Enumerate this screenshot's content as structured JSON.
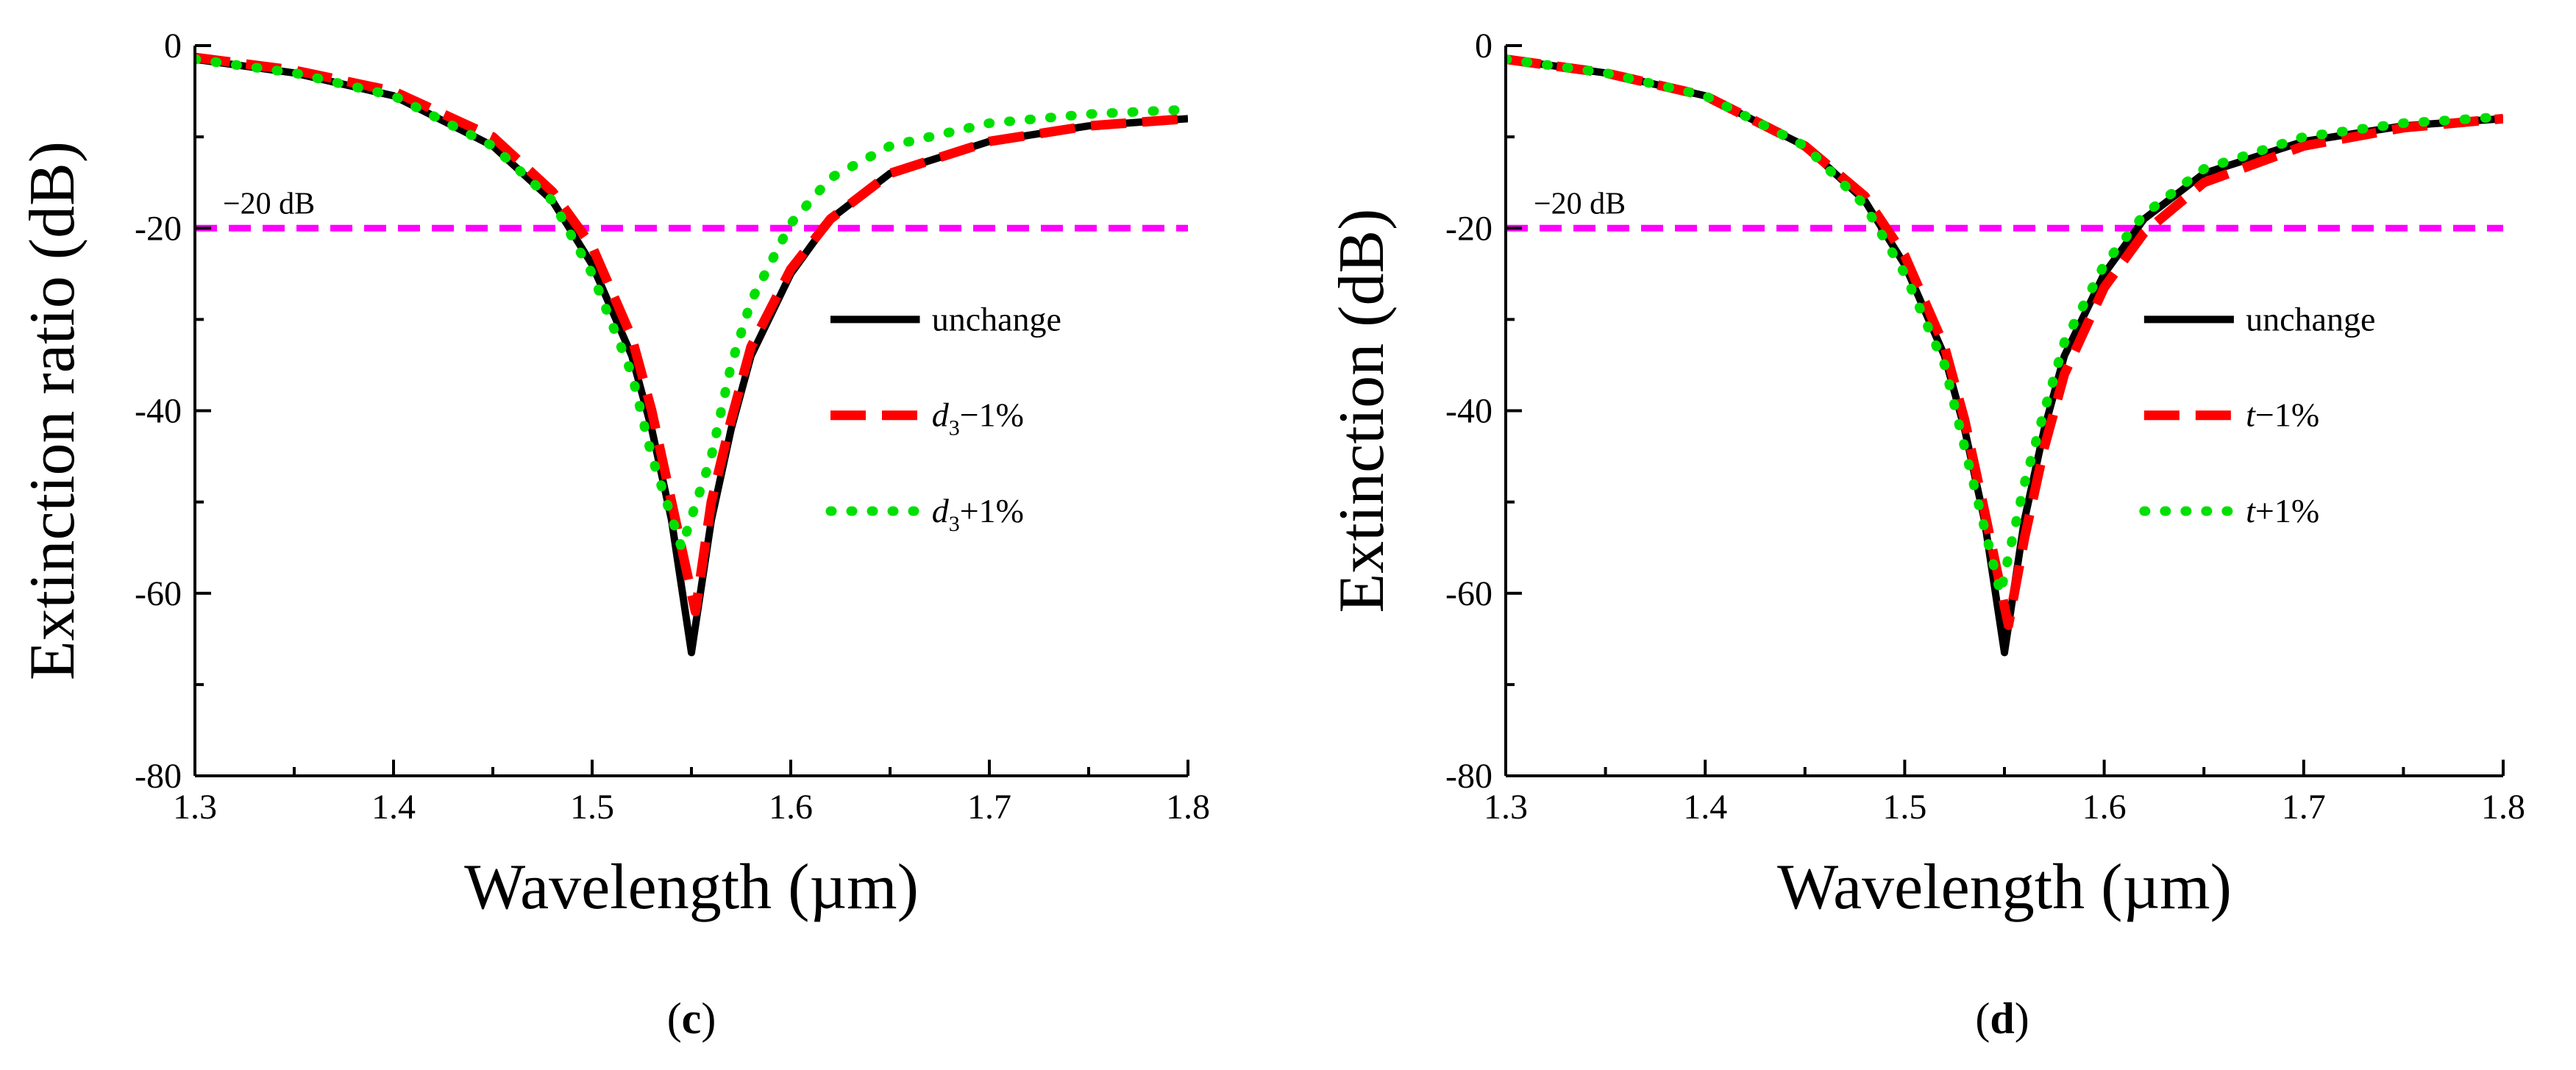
{
  "colors": {
    "unchange": "#000000",
    "minus": "#ff0000",
    "plus": "#00e000",
    "reference": "#ff00ff"
  },
  "chart_data": [
    {
      "type": "line",
      "panel_label": {
        "open": "(",
        "letter": "c",
        "close": ")"
      },
      "xlabel": "Wavelength (µm)",
      "ylabel": "Extinction ratio (dB)",
      "xlim": [
        1.3,
        1.8
      ],
      "ylim": [
        -80,
        0
      ],
      "xticks": [
        "1.3",
        "1.4",
        "1.5",
        "1.6",
        "1.7",
        "1.8"
      ],
      "yticks": [
        "0",
        "-20",
        "-40",
        "-60",
        "-80"
      ],
      "reference_line": {
        "y": -20,
        "label": "−20 dB"
      },
      "legend_position": "right",
      "series": [
        {
          "name": "unchange",
          "legend": {
            "var": "unchange",
            "sub": "",
            "suffix": ""
          },
          "style": "solid",
          "x": [
            1.3,
            1.35,
            1.4,
            1.45,
            1.48,
            1.5,
            1.52,
            1.53,
            1.54,
            1.55,
            1.56,
            1.57,
            1.58,
            1.6,
            1.62,
            1.65,
            1.7,
            1.75,
            1.8
          ],
          "y": [
            -1.5,
            -3,
            -5.5,
            -11,
            -17,
            -24,
            -34,
            -42,
            -52,
            -66.5,
            -52,
            -42,
            -34,
            -25,
            -19,
            -14,
            -10.5,
            -8.8,
            -8
          ]
        },
        {
          "name": "d3−1%",
          "legend": {
            "var": "d",
            "sub": "3",
            "suffix": "−1%"
          },
          "style": "dashed",
          "x": [
            1.3,
            1.35,
            1.4,
            1.45,
            1.48,
            1.5,
            1.52,
            1.53,
            1.54,
            1.552,
            1.56,
            1.57,
            1.58,
            1.6,
            1.62,
            1.65,
            1.7,
            1.75,
            1.8
          ],
          "y": [
            -1.3,
            -2.7,
            -5,
            -10,
            -16,
            -22,
            -32,
            -40,
            -50,
            -62,
            -50,
            -41,
            -33,
            -24.5,
            -19,
            -14,
            -10.5,
            -8.8,
            -8
          ]
        },
        {
          "name": "d3+1%",
          "legend": {
            "var": "d",
            "sub": "3",
            "suffix": "+1%"
          },
          "style": "dotted",
          "x": [
            1.3,
            1.35,
            1.4,
            1.45,
            1.48,
            1.5,
            1.52,
            1.53,
            1.545,
            1.56,
            1.57,
            1.58,
            1.6,
            1.62,
            1.65,
            1.7,
            1.75,
            1.8
          ],
          "y": [
            -1.5,
            -3,
            -5.5,
            -11,
            -17,
            -25,
            -36,
            -45,
            -55,
            -45,
            -35,
            -28,
            -19.5,
            -14.5,
            -11,
            -8.5,
            -7.5,
            -7
          ]
        }
      ]
    },
    {
      "type": "line",
      "panel_label": {
        "open": "(",
        "letter": "d",
        "close": ")"
      },
      "xlabel": "Wavelength (µm)",
      "ylabel": "Extinction (dB)",
      "xlim": [
        1.3,
        1.8
      ],
      "ylim": [
        -80,
        0
      ],
      "xticks": [
        "1.3",
        "1.4",
        "1.5",
        "1.6",
        "1.7",
        "1.8"
      ],
      "yticks": [
        "0",
        "-20",
        "-40",
        "-60",
        "-80"
      ],
      "reference_line": {
        "y": -20,
        "label": "−20 dB"
      },
      "legend_position": "right",
      "series": [
        {
          "name": "unchange",
          "legend": {
            "var": "unchange",
            "sub": "",
            "suffix": ""
          },
          "style": "solid",
          "x": [
            1.3,
            1.35,
            1.4,
            1.45,
            1.48,
            1.5,
            1.52,
            1.53,
            1.54,
            1.55,
            1.56,
            1.57,
            1.58,
            1.6,
            1.62,
            1.65,
            1.7,
            1.75,
            1.8
          ],
          "y": [
            -1.5,
            -3,
            -5.5,
            -11,
            -17,
            -24,
            -34,
            -42,
            -52,
            -66.5,
            -52,
            -42,
            -34,
            -25,
            -19,
            -14,
            -10.5,
            -8.8,
            -8
          ]
        },
        {
          "name": "t−1%",
          "legend": {
            "var": "t",
            "sub": "",
            "suffix": "−1%"
          },
          "style": "dashed",
          "x": [
            1.3,
            1.35,
            1.4,
            1.45,
            1.48,
            1.5,
            1.52,
            1.53,
            1.54,
            1.552,
            1.56,
            1.57,
            1.58,
            1.6,
            1.62,
            1.65,
            1.7,
            1.75,
            1.8
          ],
          "y": [
            -1.5,
            -3,
            -5.5,
            -11,
            -16.5,
            -23,
            -33,
            -41,
            -51,
            -63.5,
            -54,
            -44,
            -36,
            -26.5,
            -20.5,
            -15,
            -11,
            -9,
            -8
          ]
        },
        {
          "name": "t+1%",
          "legend": {
            "var": "t",
            "sub": "",
            "suffix": "+1%"
          },
          "style": "dotted",
          "x": [
            1.3,
            1.35,
            1.4,
            1.45,
            1.48,
            1.5,
            1.52,
            1.53,
            1.548,
            1.56,
            1.57,
            1.58,
            1.6,
            1.62,
            1.65,
            1.7,
            1.75,
            1.8
          ],
          "y": [
            -1.5,
            -3,
            -5.5,
            -11,
            -17.5,
            -25,
            -35,
            -44,
            -60,
            -48,
            -40,
            -32.5,
            -24,
            -18.5,
            -13.5,
            -10,
            -8.5,
            -7.8
          ]
        }
      ]
    }
  ]
}
